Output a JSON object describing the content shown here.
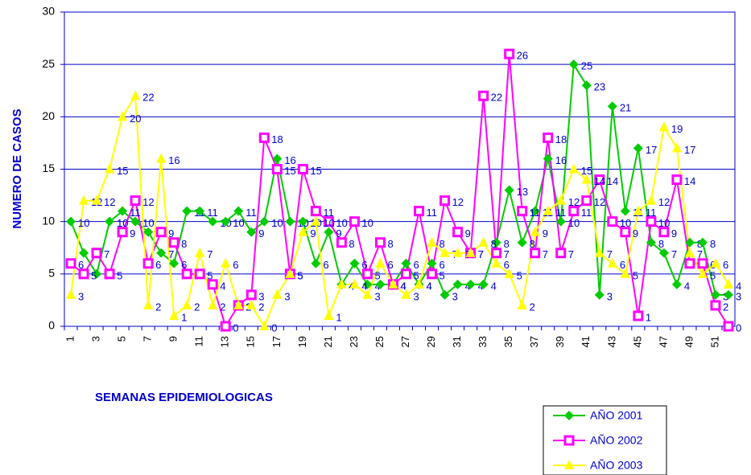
{
  "chart_data": {
    "type": "line",
    "ylabel": "NUMERO DE CASOS",
    "xlabel": "SEMANAS EPIDEMIOLOGICAS",
    "categories": [
      1,
      null,
      3,
      null,
      5,
      null,
      7,
      null,
      9,
      null,
      11,
      null,
      13,
      null,
      15,
      null,
      17,
      null,
      19,
      null,
      21,
      null,
      23,
      null,
      25,
      null,
      27,
      null,
      29,
      null,
      31,
      null,
      33,
      null,
      35,
      null,
      37,
      null,
      39,
      null,
      41,
      null,
      43,
      null,
      45,
      null,
      47,
      null,
      49,
      null,
      51,
      null
    ],
    "series": [
      {
        "name": "AÑO 2001",
        "color": "#00cc00",
        "marker": "diamond",
        "values": [
          10,
          7,
          5,
          10,
          11,
          10,
          9,
          7,
          6,
          11,
          11,
          10,
          10,
          11,
          9,
          10,
          16,
          10,
          10,
          6,
          9,
          4,
          6,
          4,
          4,
          4,
          6,
          4,
          6,
          3,
          4,
          4,
          4,
          8,
          13,
          8,
          11,
          16,
          10,
          25,
          23,
          3,
          21,
          11,
          17,
          8,
          7,
          4,
          8,
          8,
          3,
          3
        ]
      },
      {
        "name": "AÑO 2002",
        "color": "#ff00ff",
        "marker": "square",
        "values": [
          6,
          5,
          7,
          5,
          9,
          12,
          6,
          9,
          8,
          5,
          5,
          4,
          0,
          2,
          3,
          18,
          15,
          5,
          15,
          11,
          10,
          8,
          10,
          5,
          8,
          4,
          5,
          11,
          5,
          12,
          9,
          7,
          22,
          7,
          26,
          11,
          7,
          18,
          7,
          11,
          12,
          14,
          10,
          9,
          1,
          10,
          9,
          14,
          6,
          6,
          2,
          0
        ]
      },
      {
        "name": "AÑO 2003",
        "color": "#ffff00",
        "marker": "triangle",
        "values": [
          3,
          12,
          12,
          15,
          20,
          22,
          2,
          16,
          1,
          2,
          7,
          2,
          6,
          2,
          2,
          0,
          3,
          5,
          9,
          10,
          1,
          4,
          4,
          3,
          6,
          4,
          3,
          4,
          8,
          7,
          7,
          7,
          8,
          6,
          5,
          2,
          9,
          11,
          12,
          15,
          14,
          7,
          6,
          5,
          11,
          12,
          19,
          17,
          7,
          5,
          6,
          4
        ]
      }
    ],
    "ylim": [
      0,
      30
    ],
    "yticks": [
      0,
      5,
      10,
      15,
      20,
      25,
      30
    ],
    "grid": true,
    "legend": "bottom-right"
  }
}
